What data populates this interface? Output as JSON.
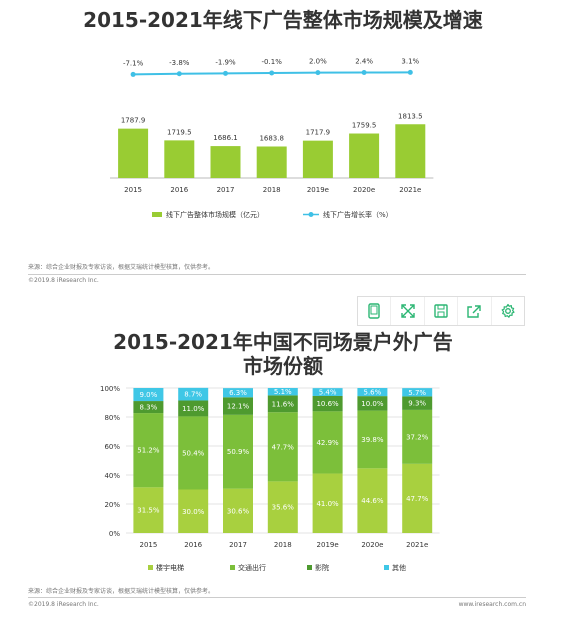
{
  "chart_data": [
    {
      "type": "bar",
      "title": "2015-2021年线下广告整体市场规模及增速",
      "categories": [
        "2015",
        "2016",
        "2017",
        "2018",
        "2019e",
        "2020e",
        "2021e"
      ],
      "series": [
        {
          "name": "线下广告整体市场规模（亿元）",
          "type": "bar",
          "values": [
            1787.9,
            1719.5,
            1686.1,
            1683.8,
            1717.9,
            1759.5,
            1813.5
          ],
          "labels": [
            "1787.9",
            "1719.5",
            "1686.1",
            "1683.8",
            "1717.9",
            "1759.5",
            "1813.5"
          ],
          "color": "#99cc33"
        },
        {
          "name": "线下广告增长率（%）",
          "type": "line",
          "values": [
            -7.1,
            -3.8,
            -1.9,
            -0.1,
            2.0,
            2.4,
            3.1
          ],
          "labels": [
            "-7.1%",
            "-3.8%",
            "-1.9%",
            "-0.1%",
            "2.0%",
            "2.4%",
            "3.1%"
          ],
          "color": "#3fc0e6"
        }
      ],
      "legend": "bottom",
      "grid": false
    },
    {
      "type": "bar",
      "stacked": true,
      "title_lines": [
        "2015-2021年中国不同场景户外广告",
        "市场份额"
      ],
      "categories": [
        "2015",
        "2016",
        "2017",
        "2018",
        "2019e",
        "2020e",
        "2021e"
      ],
      "ylim": [
        0,
        100
      ],
      "yticks": [
        "0%",
        "20%",
        "40%",
        "60%",
        "80%",
        "100%"
      ],
      "series": [
        {
          "name": "楼宇电梯",
          "values": [
            31.5,
            30.0,
            30.6,
            35.6,
            41.0,
            44.6,
            47.7
          ],
          "labels": [
            "31.5%",
            "30.0%",
            "30.6%",
            "35.6%",
            "41.0%",
            "44.6%",
            "47.7%"
          ],
          "color": "#a8d03f"
        },
        {
          "name": "交通出行",
          "values": [
            51.2,
            50.4,
            50.9,
            47.7,
            42.9,
            39.8,
            37.2
          ],
          "labels": [
            "51.2%",
            "50.4%",
            "50.9%",
            "47.7%",
            "42.9%",
            "39.8%",
            "37.2%"
          ],
          "color": "#7cbf3a"
        },
        {
          "name": "影院",
          "values": [
            8.3,
            11.0,
            12.1,
            11.6,
            10.6,
            10.0,
            9.3
          ],
          "labels": [
            "8.3%",
            "11.0%",
            "12.1%",
            "11.6%",
            "10.6%",
            "10.0%",
            "9.3%"
          ],
          "color": "#4e9a2f"
        },
        {
          "name": "其他",
          "values": [
            9.0,
            8.7,
            6.3,
            5.1,
            5.4,
            5.6,
            5.7
          ],
          "labels": [
            "9.0%",
            "8.7%",
            "6.3%",
            "5.1%",
            "5.4%",
            "5.6%",
            "5.7%"
          ],
          "color": "#3fc7e6"
        }
      ],
      "legend": "bottom",
      "grid": true
    }
  ],
  "footer1": {
    "source": "来源：综合企业财报及专家访谈，根据艾瑞统计模型核算，仅供参考。",
    "copyright": "©2019.8 iResearch Inc."
  },
  "footer2": {
    "source": "来源：综合企业财报及专家访谈，根据艾瑞统计模型核算，仅供参考。",
    "copyright": "©2019.8 iResearch Inc.",
    "url": "www.iresearch.com.cn"
  },
  "toolbar": {
    "icons": [
      "tablet-icon",
      "expand-icon",
      "save-icon",
      "share-icon",
      "gear-icon"
    ],
    "accent": "#2bb673"
  }
}
